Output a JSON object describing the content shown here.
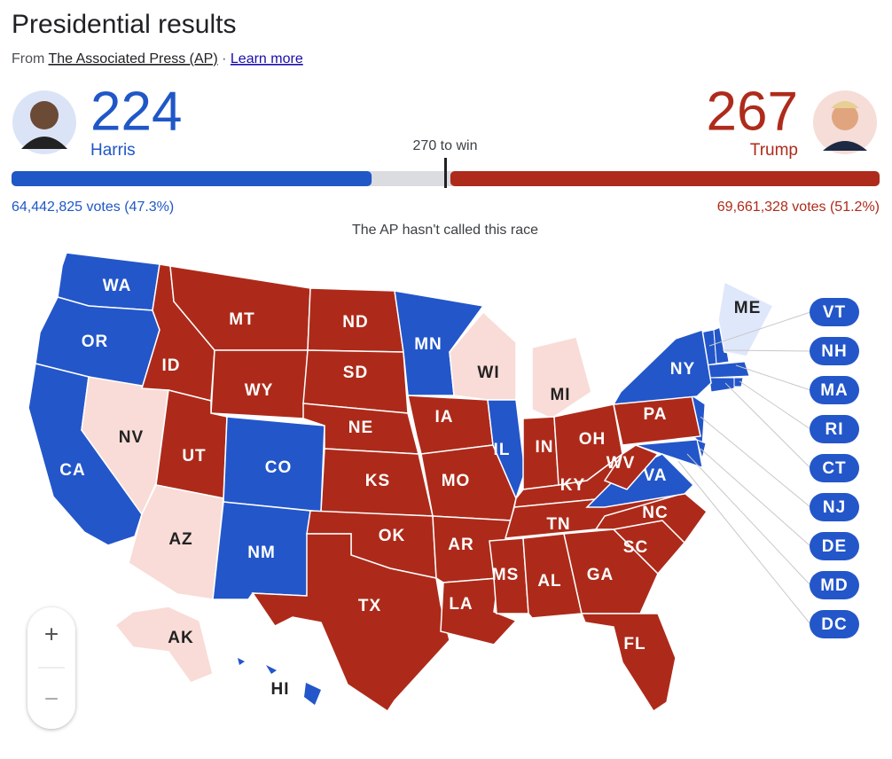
{
  "header": {
    "title": "Presidential results",
    "source_prefix": "From",
    "source": "The Associated Press (AP)",
    "separator": "·",
    "learn_more": "Learn more"
  },
  "race": {
    "threshold": {
      "value": 270,
      "label": "270 to win"
    },
    "status": "The AP hasn't called this race",
    "candidates": [
      {
        "name": "Harris",
        "electoral_votes": 224,
        "votes": "64,442,825 votes (47.3%)",
        "color": "#1f57c7"
      },
      {
        "name": "Trump",
        "electoral_votes": 267,
        "votes": "69,661,328 votes (51.2%)",
        "color": "#ae2b1b"
      }
    ]
  },
  "map": {
    "states": [
      {
        "abbr": "WA",
        "color": "#2356c9"
      },
      {
        "abbr": "OR",
        "color": "#2356c9"
      },
      {
        "abbr": "CA",
        "color": "#2356c9"
      },
      {
        "abbr": "NV",
        "color": "#f9dcd7"
      },
      {
        "abbr": "ID",
        "color": "#ad2a1a"
      },
      {
        "abbr": "MT",
        "color": "#ad2a1a"
      },
      {
        "abbr": "WY",
        "color": "#ad2a1a"
      },
      {
        "abbr": "UT",
        "color": "#ad2a1a"
      },
      {
        "abbr": "CO",
        "color": "#2356c9"
      },
      {
        "abbr": "AZ",
        "color": "#f9dcd7"
      },
      {
        "abbr": "NM",
        "color": "#2356c9"
      },
      {
        "abbr": "ND",
        "color": "#ad2a1a"
      },
      {
        "abbr": "SD",
        "color": "#ad2a1a"
      },
      {
        "abbr": "NE",
        "color": "#ad2a1a"
      },
      {
        "abbr": "KS",
        "color": "#ad2a1a"
      },
      {
        "abbr": "OK",
        "color": "#ad2a1a"
      },
      {
        "abbr": "TX",
        "color": "#ad2a1a"
      },
      {
        "abbr": "MN",
        "color": "#2356c9"
      },
      {
        "abbr": "IA",
        "color": "#ad2a1a"
      },
      {
        "abbr": "MO",
        "color": "#ad2a1a"
      },
      {
        "abbr": "AR",
        "color": "#ad2a1a"
      },
      {
        "abbr": "LA",
        "color": "#ad2a1a"
      },
      {
        "abbr": "WI",
        "color": "#f9dcd7"
      },
      {
        "abbr": "IL",
        "color": "#2356c9"
      },
      {
        "abbr": "MI",
        "color": "#f9dcd7"
      },
      {
        "abbr": "IN",
        "color": "#ad2a1a"
      },
      {
        "abbr": "OH",
        "color": "#ad2a1a"
      },
      {
        "abbr": "KY",
        "color": "#ad2a1a"
      },
      {
        "abbr": "TN",
        "color": "#ad2a1a"
      },
      {
        "abbr": "MS",
        "color": "#ad2a1a"
      },
      {
        "abbr": "AL",
        "color": "#ad2a1a"
      },
      {
        "abbr": "GA",
        "color": "#ad2a1a"
      },
      {
        "abbr": "FL",
        "color": "#ad2a1a"
      },
      {
        "abbr": "SC",
        "color": "#ad2a1a"
      },
      {
        "abbr": "NC",
        "color": "#ad2a1a"
      },
      {
        "abbr": "VA",
        "color": "#2356c9"
      },
      {
        "abbr": "WV",
        "color": "#ad2a1a"
      },
      {
        "abbr": "PA",
        "color": "#ad2a1a"
      },
      {
        "abbr": "NY",
        "color": "#2356c9"
      },
      {
        "abbr": "ME",
        "color": "#dfe7fb"
      },
      {
        "abbr": "AK",
        "color": "#f9dcd7"
      },
      {
        "abbr": "HI",
        "color": "#2356c9"
      }
    ],
    "callouts": [
      {
        "abbr": "VT",
        "color": "#2356c9"
      },
      {
        "abbr": "NH",
        "color": "#2356c9"
      },
      {
        "abbr": "MA",
        "color": "#2356c9"
      },
      {
        "abbr": "RI",
        "color": "#2356c9"
      },
      {
        "abbr": "CT",
        "color": "#2356c9"
      },
      {
        "abbr": "NJ",
        "color": "#2356c9"
      },
      {
        "abbr": "DE",
        "color": "#2356c9"
      },
      {
        "abbr": "MD",
        "color": "#2356c9"
      },
      {
        "abbr": "DC",
        "color": "#2356c9"
      }
    ]
  },
  "controls": {
    "zoom_in": "+",
    "zoom_out": "−"
  }
}
